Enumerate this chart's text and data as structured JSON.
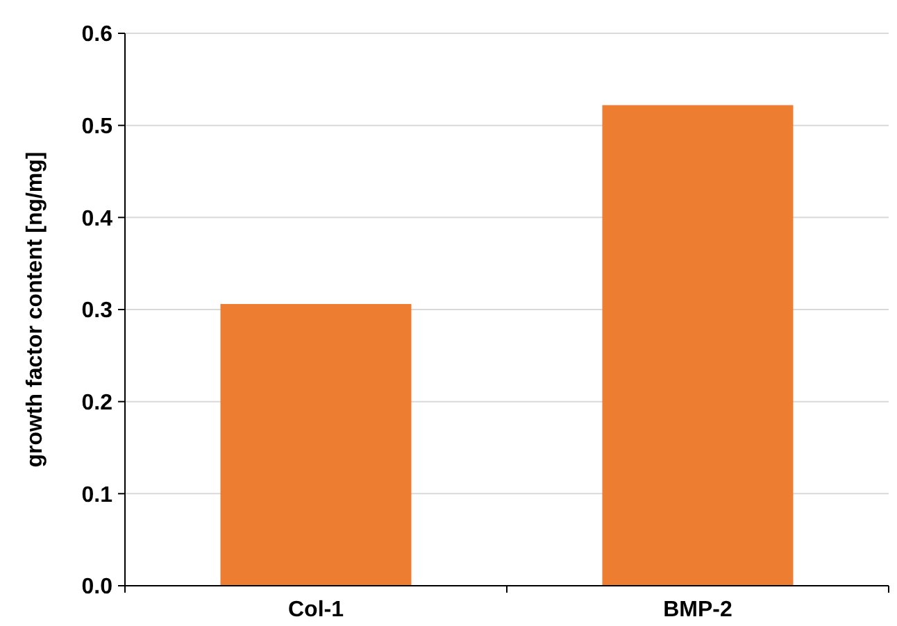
{
  "chart_data": {
    "type": "bar",
    "ylabel": "growth factor content [ng/mg]",
    "categories": [
      "Col-1",
      "BMP-2"
    ],
    "values": [
      0.306,
      0.522
    ],
    "color": "#ed7d31",
    "ylim": [
      0,
      0.6
    ],
    "yticks": [
      {
        "value": 0,
        "label": "0.0"
      },
      {
        "value": 0.1,
        "label": "0.1"
      },
      {
        "value": 0.2,
        "label": "0.2"
      },
      {
        "value": 0.3,
        "label": "0.3"
      },
      {
        "value": 0.4,
        "label": "0.4"
      },
      {
        "value": 0.5,
        "label": "0.5"
      },
      {
        "value": 0.6,
        "label": "0.6"
      }
    ],
    "grid": "y"
  }
}
